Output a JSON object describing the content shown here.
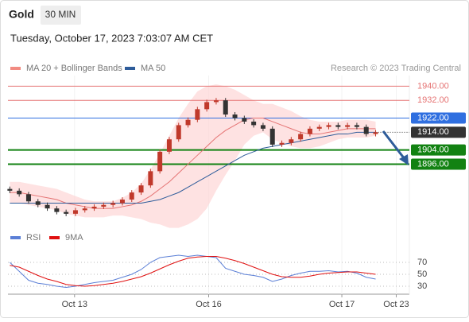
{
  "header": {
    "title": "Gold",
    "interval": "30 MIN",
    "timestamp": "Tuesday, October 17, 2023 7:03:07 AM CET"
  },
  "chart_data": [
    {
      "type": "candlestick",
      "legend": [
        "MA 20 + Bollinger Bands",
        "MA 50"
      ],
      "legend_colors": [
        "#f28b82",
        "#2e5c9a"
      ],
      "credit": "Research © 2023 Trading Central",
      "xlim": [
        -0.2,
        42.6
      ],
      "xticks": [
        {
          "value": 6.9,
          "label": "Oct 13"
        },
        {
          "value": 21.2,
          "label": "Oct 16"
        },
        {
          "value": 35.4,
          "label": "Oct 17"
        },
        {
          "value": 41.2,
          "label": "Oct 23"
        }
      ],
      "ylim": [
        1863,
        1946
      ],
      "candles": {
        "open": 1882,
        "close": [
          1881,
          1879,
          1875,
          1873,
          1871,
          1869,
          1868,
          1870,
          1871,
          1872,
          1873,
          1874,
          1876,
          1880,
          1884,
          1892,
          1903,
          1910,
          1918,
          1921,
          1927,
          1931,
          1932,
          1924,
          1922,
          1920,
          1918,
          1916,
          1907,
          1908,
          1910,
          1913,
          1916,
          1917,
          1918,
          1917,
          1918,
          1917,
          1913,
          1914
        ],
        "up_color": "#c0392b",
        "down_color": "#333333"
      },
      "series": [
        {
          "name": "MA 20",
          "color": "#e57373",
          "values": [
            1880,
            1880,
            1879,
            1878,
            1877,
            1876,
            1874,
            1873,
            1872,
            1871,
            1871,
            1871,
            1872,
            1873,
            1875,
            1878,
            1882,
            1886,
            1891,
            1896,
            1901,
            1906,
            1911,
            1915,
            1918,
            1921,
            1922,
            1922,
            1920,
            1918,
            1916,
            1914,
            1913,
            1913,
            1914,
            1915,
            1916,
            1916,
            1916,
            1916
          ]
        },
        {
          "name": "MA 50",
          "color": "#2e5c9a",
          "values": [
            1874,
            1874,
            1874,
            1874,
            1874,
            1874,
            1874,
            1874,
            1874,
            1874,
            1874,
            1874,
            1874,
            1874,
            1874,
            1875,
            1876,
            1878,
            1880,
            1883,
            1886,
            1889,
            1892,
            1895,
            1898,
            1901,
            1903,
            1905,
            1906,
            1907,
            1908,
            1909,
            1910,
            1911,
            1912,
            1913,
            1913,
            1914,
            1914,
            1914
          ]
        }
      ],
      "bands": {
        "color": "#fdd5d5",
        "upper": [
          1886,
          1886,
          1885,
          1884,
          1883,
          1882,
          1880,
          1878,
          1876,
          1875,
          1875,
          1875,
          1877,
          1880,
          1885,
          1893,
          1902,
          1912,
          1922,
          1930,
          1937,
          1940,
          1941,
          1940,
          1938,
          1935,
          1932,
          1930,
          1930,
          1928,
          1926,
          1923,
          1921,
          1920,
          1920,
          1920,
          1921,
          1921,
          1921,
          1920
        ],
        "lower": [
          1874,
          1874,
          1873,
          1872,
          1871,
          1870,
          1868,
          1867,
          1866,
          1866,
          1866,
          1867,
          1867,
          1866,
          1865,
          1863,
          1862,
          1860,
          1860,
          1862,
          1865,
          1871,
          1881,
          1890,
          1898,
          1907,
          1912,
          1914,
          1910,
          1908,
          1906,
          1905,
          1905,
          1906,
          1908,
          1910,
          1911,
          1911,
          1911,
          1912
        ]
      },
      "levels": [
        {
          "value": 1940,
          "label": "1940.00",
          "color": "#e57373",
          "style": "resistance"
        },
        {
          "value": 1932,
          "label": "1932.00",
          "color": "#e57373",
          "style": "resistance"
        },
        {
          "value": 1922,
          "label": "1922.00",
          "color": "#2f6fe0",
          "style": "pivot"
        },
        {
          "value": 1914,
          "label": "1914.00",
          "color": "#333333",
          "style": "current"
        },
        {
          "value": 1904,
          "label": "1904.00",
          "color": "#128212",
          "style": "support"
        },
        {
          "value": 1896,
          "label": "1896.00",
          "color": "#128212",
          "style": "support"
        }
      ]
    },
    {
      "type": "line",
      "ylim": [
        20,
        90
      ],
      "yticks": [
        70,
        50,
        30
      ],
      "series": [
        {
          "name": "RSI",
          "color": "#5b7fd6",
          "values": [
            70,
            55,
            40,
            35,
            33,
            30,
            28,
            30,
            33,
            36,
            38,
            40,
            45,
            50,
            58,
            70,
            78,
            80,
            82,
            80,
            82,
            80,
            78,
            60,
            55,
            50,
            48,
            45,
            38,
            42,
            48,
            52,
            55,
            55,
            56,
            54,
            55,
            52,
            45,
            42
          ]
        },
        {
          "name": "9MA",
          "color": "#e01010",
          "values": [
            65,
            62,
            55,
            48,
            42,
            38,
            33,
            31,
            30,
            31,
            33,
            35,
            38,
            42,
            46,
            52,
            59,
            66,
            72,
            77,
            79,
            80,
            80,
            77,
            73,
            68,
            62,
            56,
            50,
            46,
            45,
            45,
            47,
            50,
            52,
            53,
            54,
            54,
            52,
            50
          ]
        }
      ]
    }
  ]
}
